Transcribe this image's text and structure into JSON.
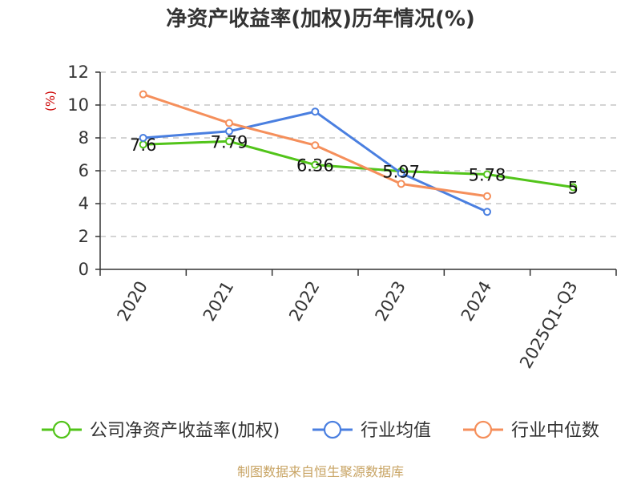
{
  "chart_data": {
    "type": "line",
    "title": "净资产收益率(加权)历年情况(%)",
    "ylabel": "(%)",
    "xlabel": "",
    "categories": [
      "2020",
      "2021",
      "2022",
      "2023",
      "2024",
      "2025Q1-Q3"
    ],
    "ylim": [
      0,
      12
    ],
    "yticks": [
      0,
      2,
      4,
      6,
      8,
      10,
      12
    ],
    "grid": true,
    "legend_position": "bottom",
    "series": [
      {
        "name": "公司净资产收益率(加权)",
        "color": "#52c41a",
        "values": [
          7.6,
          7.79,
          6.36,
          5.97,
          5.78,
          5
        ],
        "data_labels": [
          "7.6",
          "7.79",
          "6.36",
          "5.97",
          "5.78",
          "5"
        ]
      },
      {
        "name": "行业均值",
        "color": "#4a7fe0",
        "values": [
          8.0,
          8.4,
          9.6,
          5.85,
          3.5,
          null
        ]
      },
      {
        "name": "行业中位数",
        "color": "#f58f5b",
        "values": [
          10.65,
          8.9,
          7.55,
          5.2,
          4.45,
          null
        ]
      }
    ],
    "source": "制图数据来自恒生聚源数据库"
  }
}
